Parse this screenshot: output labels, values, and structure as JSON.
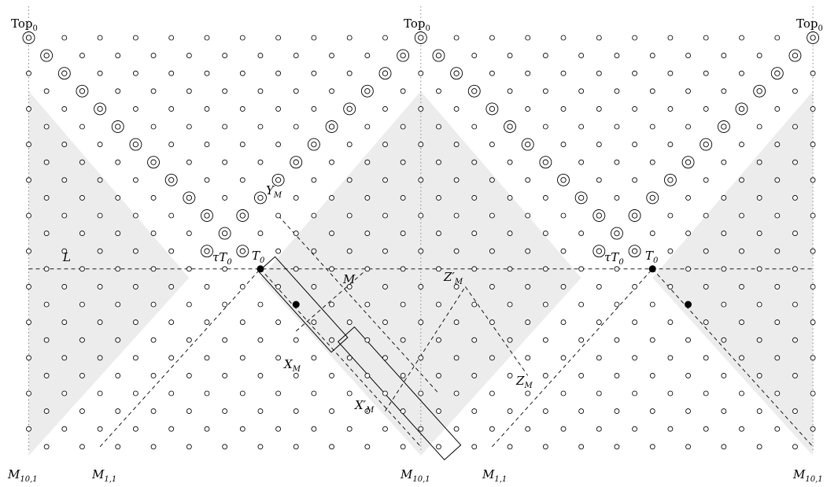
{
  "labels": {
    "top_left": "Top",
    "top_left_sub": "0",
    "top_mid": "Top",
    "top_mid_sub": "0",
    "top_right": "Top",
    "top_right_sub": "0",
    "L": "L",
    "tauT0_left": "τT",
    "tauT0_left_sub": "0",
    "T0_left": "T",
    "T0_left_sub": "0",
    "YM": "Y",
    "YM_sub": "M",
    "M": "M",
    "XM": "X",
    "XM_sub": "M",
    "XpM": "X′",
    "XpM_sub": "M",
    "ZpM": "Z′",
    "ZpM_sub": "M",
    "ZM": "Z",
    "ZM_sub": "M",
    "tauT0_right": "τT",
    "tauT0_right_sub": "0",
    "T0_right": "T",
    "T0_right_sub": "0",
    "M101_left": "M",
    "M101_left_sub": "10,1",
    "M11_left": "M",
    "M11_left_sub": "1,1",
    "M101_mid": "M",
    "M101_mid_sub": "10,1",
    "M11_right": "M",
    "M11_right_sub": "1,1",
    "M101_right": "M",
    "M101_right_sub": "10,1"
  },
  "colors": {
    "shade": "#ececec",
    "ink": "#000000",
    "guide": "#888888"
  }
}
